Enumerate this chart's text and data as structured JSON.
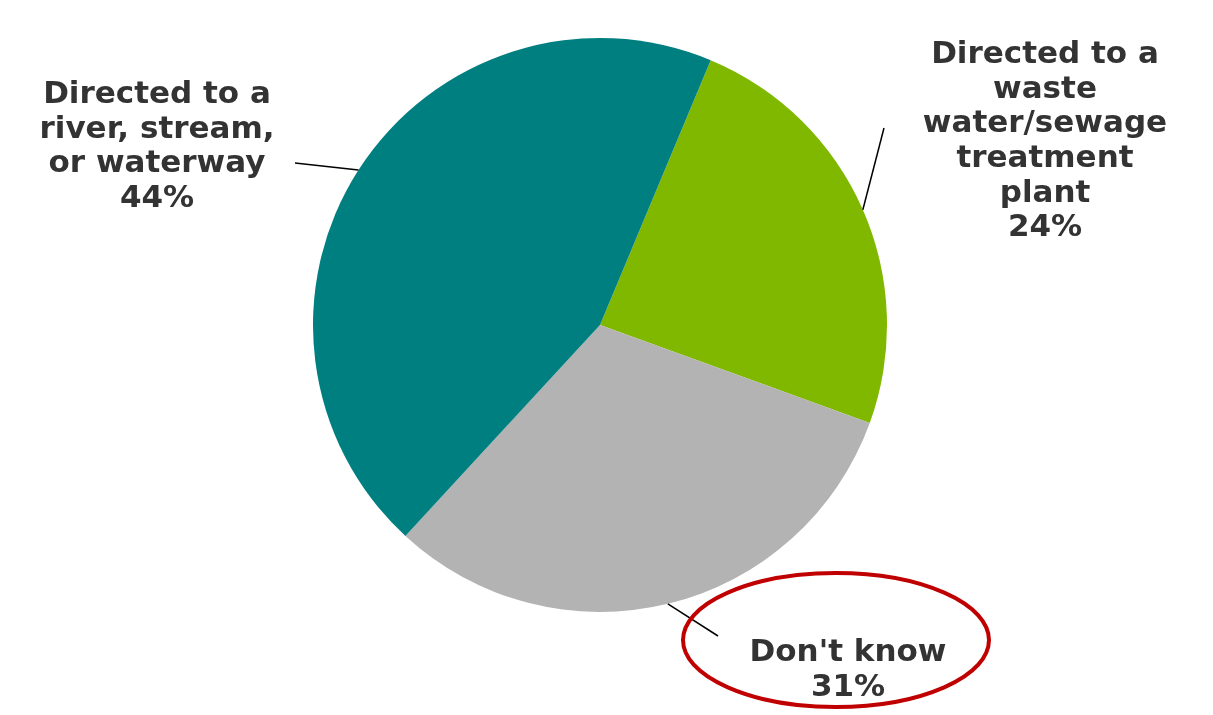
{
  "chart_data": {
    "type": "pie",
    "categories": [
      "Directed to a waste water/sewage treatment plant",
      "Don't know",
      "Directed to a river, stream, or waterway"
    ],
    "values": [
      24,
      31,
      44
    ],
    "colors": [
      "#80b800",
      "#b3b3b3",
      "#007f80"
    ],
    "value_labels": [
      "24%",
      "31%",
      "44%"
    ]
  }
}
